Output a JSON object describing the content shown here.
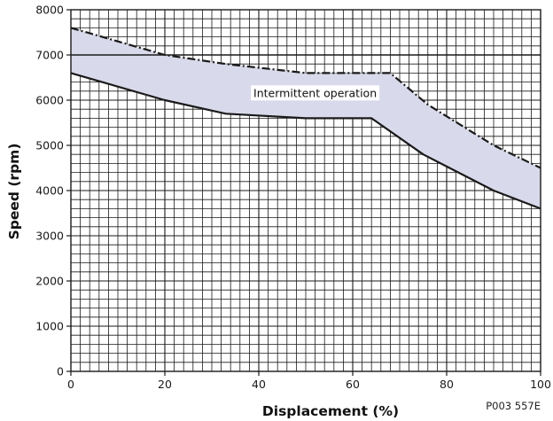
{
  "chart_data": {
    "type": "area",
    "xlabel": "Displacement (%)",
    "ylabel": "Speed (rpm)",
    "xlim": [
      0,
      100
    ],
    "ylim": [
      0,
      8000
    ],
    "x_ticks": [
      "0",
      "20",
      "40",
      "60",
      "80",
      "100"
    ],
    "y_ticks": [
      "0",
      "1000",
      "2000",
      "3000",
      "4000",
      "5000",
      "6000",
      "7000",
      "8000"
    ],
    "grid": true,
    "series": [
      {
        "line_style": "dash-dot",
        "x": [
          0,
          20,
          33,
          50,
          68,
          76,
          90,
          100
        ],
        "y": [
          7600,
          7000,
          6800,
          6600,
          6600,
          5900,
          5000,
          4500
        ]
      },
      {
        "line_style": "solid",
        "x": [
          0,
          20,
          33,
          50,
          64,
          75,
          90,
          100
        ],
        "y": [
          6600,
          6000,
          5700,
          5600,
          5600,
          4800,
          4000,
          3600
        ]
      }
    ],
    "reference_line": {
      "y": 7000
    },
    "annotations": [
      {
        "text": "Intermittent operation",
        "x": 52,
        "y": 6160
      }
    ],
    "figure_code": "P003 557E",
    "colors": {
      "band_fill": "#d8d9ea",
      "line": "#1a1a1a",
      "grid": "#1a1a1a"
    }
  }
}
